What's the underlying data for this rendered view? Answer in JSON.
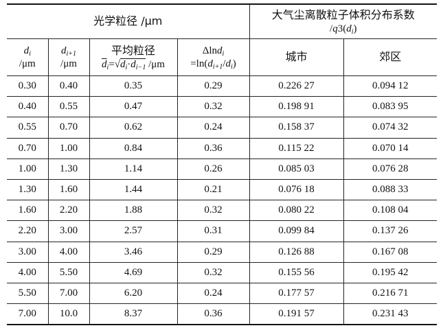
{
  "header": {
    "optical": "光学粒径 /μm",
    "distribution": {
      "line1": "大气尘离散粒子体积分布系数",
      "line2": [
        "/",
        "q",
        "3(",
        "d",
        "i",
        ")"
      ]
    },
    "columns": [
      [
        "d",
        "i",
        "/μm"
      ],
      [
        "d",
        "i+1",
        "/μm"
      ],
      [
        "平均粒径",
        "d",
        "i",
        "=",
        "√",
        "d",
        "i",
        "·",
        "d",
        "i−1",
        " /μm"
      ],
      [
        "Δln",
        "d",
        "i",
        "=ln(",
        "d",
        "i+1",
        "/",
        "d",
        "i",
        ")"
      ],
      [
        "城市"
      ],
      [
        "郊区"
      ]
    ]
  },
  "rows": [
    [
      "0.30",
      "0.40",
      "0.35",
      "0.29",
      "0.226 27",
      "0.094 12"
    ],
    [
      "0.40",
      "0.55",
      "0.47",
      "0.32",
      "0.198 91",
      "0.083 95"
    ],
    [
      "0.55",
      "0.70",
      "0.62",
      "0.24",
      "0.158 37",
      "0.074 32"
    ],
    [
      "0.70",
      "1.00",
      "0.84",
      "0.36",
      "0.115 22",
      "0.070 14"
    ],
    [
      "1.00",
      "1.30",
      "1.14",
      "0.26",
      "0.085 03",
      "0.076 28"
    ],
    [
      "1.30",
      "1.60",
      "1.44",
      "0.21",
      "0.076 18",
      "0.088 33"
    ],
    [
      "1.60",
      "2.20",
      "1.88",
      "0.32",
      "0.080 22",
      "0.108 04"
    ],
    [
      "2.20",
      "3.00",
      "2.57",
      "0.31",
      "0.099 84",
      "0.137 26"
    ],
    [
      "3.00",
      "4.00",
      "3.46",
      "0.29",
      "0.126 88",
      "0.167 08"
    ],
    [
      "4.00",
      "5.50",
      "4.69",
      "0.32",
      "0.155 56",
      "0.195 42"
    ],
    [
      "5.50",
      "7.00",
      "6.20",
      "0.24",
      "0.177 57",
      "0.216 71"
    ],
    [
      "7.00",
      "10.0",
      "8.37",
      "0.36",
      "0.191 57",
      "0.231 43"
    ]
  ]
}
